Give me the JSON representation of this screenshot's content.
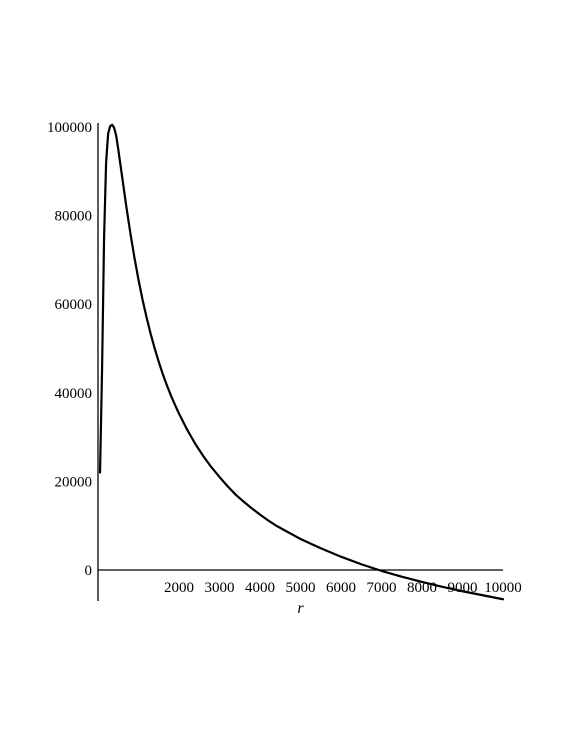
{
  "chart_data": {
    "type": "line",
    "title": "",
    "xlabel": "r",
    "ylabel": "",
    "xlim": [
      0,
      10000
    ],
    "ylim": [
      -7000,
      100000
    ],
    "grid": false,
    "legend": "none",
    "x_ticks": [
      2000,
      3000,
      4000,
      5000,
      6000,
      7000,
      8000,
      9000,
      10000
    ],
    "x_tick_labels": [
      "2000",
      "3000",
      "4000",
      "5000",
      "6000",
      "7000",
      "8000",
      "9000",
      "10000"
    ],
    "y_ticks": [
      0,
      20000,
      40000,
      60000,
      80000,
      100000
    ],
    "y_tick_labels": [
      "0",
      "20000",
      "40000",
      "60000",
      "80000",
      "100000"
    ],
    "series": [
      {
        "color": "#000000",
        "x": [
          50,
          100,
          150,
          200,
          250,
          300,
          350,
          400,
          450,
          500,
          600,
          700,
          800,
          900,
          1000,
          1100,
          1200,
          1300,
          1400,
          1500,
          1600,
          1700,
          1800,
          1900,
          2000,
          2200,
          2400,
          2600,
          2800,
          3000,
          3200,
          3400,
          3600,
          3800,
          4000,
          4200,
          4400,
          4600,
          4800,
          5000,
          5500,
          6000,
          6500,
          7000,
          7500,
          8000,
          8500,
          9000,
          9500,
          10000
        ],
        "y": [
          22000,
          45000,
          75000,
          92000,
          98500,
          100200,
          100500,
          99800,
          98000,
          95000,
          88500,
          82000,
          76000,
          70500,
          65500,
          61000,
          57000,
          53300,
          50000,
          47000,
          44200,
          41700,
          39400,
          37300,
          35300,
          31700,
          28500,
          25700,
          23200,
          21000,
          18900,
          17000,
          15400,
          13900,
          12500,
          11200,
          10000,
          9000,
          8000,
          7000,
          4900,
          3000,
          1300,
          -200,
          -1500,
          -2700,
          -3800,
          -4800,
          -5700,
          -6600
        ]
      }
    ]
  }
}
